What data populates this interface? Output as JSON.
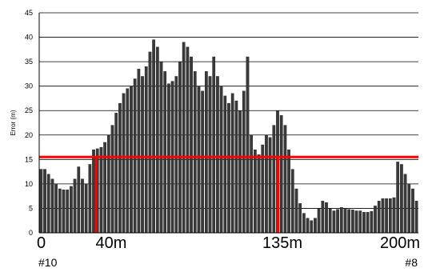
{
  "chart_data": {
    "type": "bar",
    "ylabel": "Error (m)",
    "ylim": [
      0,
      45
    ],
    "yticks": [
      0,
      5,
      10,
      15,
      20,
      25,
      30,
      35,
      40,
      45
    ],
    "grid": true,
    "colors": {
      "bars": "#3a3a3a",
      "threshold": "#ff0000",
      "grid": "#000000"
    },
    "x_range": [
      0,
      200
    ],
    "x_tick_labels": [
      {
        "x": 0,
        "label": "0"
      },
      {
        "x": 40,
        "label": "40m"
      },
      {
        "x": 135,
        "label": "135m"
      },
      {
        "x": 200,
        "label": "200m"
      }
    ],
    "endpoint_labels": [
      {
        "x": 0,
        "label": "#10"
      },
      {
        "x": 200,
        "label": "#8"
      }
    ],
    "threshold_line": {
      "y": 15.5,
      "drops": [
        {
          "x": 30,
          "to": 0
        },
        {
          "x": 126,
          "to": 0
        }
      ]
    },
    "x": [
      0,
      2,
      4,
      6,
      8,
      10,
      12,
      14,
      16,
      18,
      20,
      22,
      24,
      26,
      28,
      30,
      32,
      34,
      36,
      38,
      40,
      42,
      44,
      46,
      48,
      50,
      52,
      54,
      56,
      58,
      60,
      62,
      64,
      66,
      68,
      70,
      72,
      74,
      76,
      78,
      80,
      82,
      84,
      86,
      88,
      90,
      92,
      94,
      96,
      98,
      100,
      102,
      104,
      106,
      108,
      110,
      112,
      114,
      116,
      118,
      120,
      122,
      124,
      126,
      128,
      130,
      132,
      134,
      136,
      138,
      140,
      142,
      144,
      146,
      148,
      150,
      152,
      154,
      156,
      158,
      160,
      162,
      164,
      166,
      168,
      170,
      172,
      174,
      176,
      178,
      180,
      182,
      184,
      186,
      188,
      190,
      192,
      194,
      196,
      198,
      200
    ],
    "values": [
      13,
      13,
      12,
      11,
      10,
      9,
      8.8,
      8.8,
      9.5,
      11,
      13.5,
      11,
      10,
      14,
      17,
      17.2,
      17.5,
      18.5,
      20,
      22,
      24.5,
      26.5,
      28.5,
      29.5,
      30,
      31.5,
      33.5,
      32,
      34,
      37,
      39.5,
      38,
      35,
      33,
      30.5,
      31,
      32,
      35,
      39,
      38,
      36,
      33,
      30,
      29,
      33,
      32,
      36,
      32,
      30,
      28,
      26.5,
      28.5,
      27,
      25,
      29,
      36,
      20,
      17,
      16,
      18,
      20,
      19.5,
      22,
      25,
      24,
      22,
      17,
      13,
      9,
      6,
      4,
      3,
      2.5,
      3,
      5,
      6.5,
      6.2,
      5,
      4.5,
      4.8,
      5.2,
      5,
      4.8,
      4.7,
      4.5,
      4.5,
      4.2,
      4.2,
      4.4,
      5.5,
      6.5,
      7,
      7,
      7,
      7.2,
      14.5,
      14,
      12,
      10,
      9,
      6.5
    ]
  }
}
